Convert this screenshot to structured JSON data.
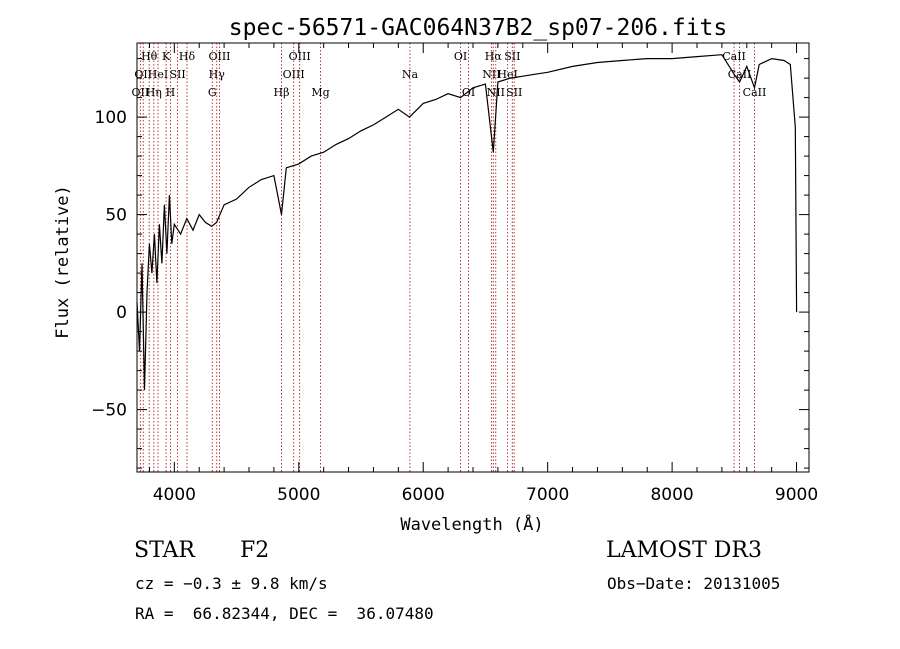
{
  "chart_data": {
    "type": "line",
    "title": "spec-56571-GAC064N37B2_sp07-206.fits",
    "xlabel": "Wavelength (Å)",
    "ylabel": "Flux (relative)",
    "xlim": [
      3700,
      9100
    ],
    "ylim": [
      -82,
      138
    ],
    "x_ticks": [
      4000,
      5000,
      6000,
      7000,
      8000,
      9000
    ],
    "y_ticks": [
      -50,
      0,
      50,
      100
    ],
    "x_tick_labels": [
      "4000",
      "5000",
      "6000",
      "7000",
      "8000",
      "9000"
    ],
    "y_tick_labels": [
      "−50",
      "0",
      "50",
      "100"
    ],
    "series": [
      {
        "name": "flux",
        "x": [
          3700,
          3720,
          3740,
          3760,
          3780,
          3800,
          3820,
          3840,
          3860,
          3880,
          3900,
          3920,
          3940,
          3960,
          3980,
          4000,
          4050,
          4100,
          4150,
          4200,
          4250,
          4300,
          4340,
          4400,
          4500,
          4600,
          4700,
          4800,
          4861,
          4900,
          5000,
          5100,
          5200,
          5300,
          5400,
          5500,
          5600,
          5700,
          5800,
          5890,
          6000,
          6100,
          6200,
          6300,
          6400,
          6500,
          6563,
          6600,
          6700,
          6800,
          6900,
          7000,
          7200,
          7400,
          7600,
          7800,
          8000,
          8200,
          8400,
          8498,
          8542,
          8600,
          8662,
          8700,
          8800,
          8900,
          8950,
          8990,
          9000
        ],
        "y": [
          5,
          -20,
          25,
          -40,
          10,
          35,
          20,
          40,
          15,
          45,
          25,
          55,
          30,
          60,
          35,
          45,
          40,
          48,
          42,
          50,
          46,
          44,
          46,
          55,
          58,
          64,
          68,
          70,
          50,
          74,
          76,
          80,
          82,
          86,
          89,
          93,
          96,
          100,
          104,
          100,
          107,
          109,
          112,
          110,
          115,
          117,
          82,
          118,
          120,
          121,
          122,
          123,
          126,
          128,
          129,
          130,
          130,
          131,
          132,
          122,
          118,
          126,
          115,
          127,
          130,
          129,
          127,
          95,
          0
        ]
      }
    ],
    "lines": [
      {
        "wave": 3727,
        "label": "OII",
        "row": 2
      },
      {
        "wave": 3750,
        "label": "OII",
        "row": 1
      },
      {
        "wave": 3798,
        "label": "Hθ",
        "row": 0
      },
      {
        "wave": 3835,
        "label": "Hη",
        "row": 2
      },
      {
        "wave": 3869,
        "label": "HeI",
        "row": 1
      },
      {
        "wave": 3934,
        "label": "K",
        "row": 0
      },
      {
        "wave": 3969,
        "label": "H",
        "row": 2
      },
      {
        "wave": 4026,
        "label": "SII",
        "row": 1
      },
      {
        "wave": 4102,
        "label": "Hδ",
        "row": 0
      },
      {
        "wave": 4305,
        "label": "G",
        "row": 2
      },
      {
        "wave": 4341,
        "label": "Hγ",
        "row": 1
      },
      {
        "wave": 4363,
        "label": "OIII",
        "row": 0
      },
      {
        "wave": 4861,
        "label": "Hβ",
        "row": 2
      },
      {
        "wave": 4959,
        "label": "OIII",
        "row": 1
      },
      {
        "wave": 5007,
        "label": "OIII",
        "row": 0
      },
      {
        "wave": 5175,
        "label": "Mg",
        "row": 2
      },
      {
        "wave": 5893,
        "label": "Na",
        "row": 1
      },
      {
        "wave": 6300,
        "label": "OI",
        "row": 0
      },
      {
        "wave": 6364,
        "label": "OI",
        "row": 2
      },
      {
        "wave": 6548,
        "label": "NII",
        "row": 1
      },
      {
        "wave": 6563,
        "label": "Hα",
        "row": 0
      },
      {
        "wave": 6583,
        "label": "NII",
        "row": 2
      },
      {
        "wave": 6678,
        "label": "HeI",
        "row": 1
      },
      {
        "wave": 6716,
        "label": "SII",
        "row": 0
      },
      {
        "wave": 6731,
        "label": "SII",
        "row": 2
      },
      {
        "wave": 8498,
        "label": "CaII",
        "row": 0
      },
      {
        "wave": 8542,
        "label": "CaII",
        "row": 1
      },
      {
        "wave": 8662,
        "label": "CaII",
        "row": 2
      }
    ]
  },
  "info": {
    "class_label": "STAR",
    "subclass": "F2",
    "survey": "LAMOST DR3",
    "cz": "cz = −0.3 ± 9.8 km/s",
    "obs_date": "Obs−Date: 20131005",
    "coords": "RA =  66.82344, DEC =  36.07480"
  },
  "colors": {
    "line_marker": "#b22222",
    "spectrum": "#000000"
  }
}
